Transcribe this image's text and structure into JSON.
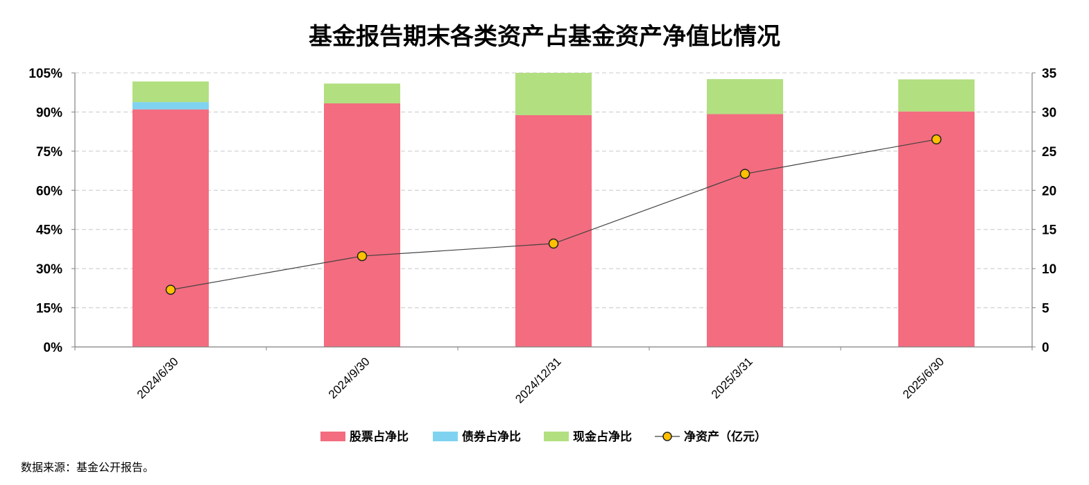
{
  "chart_data": {
    "type": "bar",
    "title": "基金报告期末各类资产占基金资产净值比情况",
    "categories": [
      "2024/6/30",
      "2024/9/30",
      "2024/12/31",
      "2025/3/31",
      "2025/6/30"
    ],
    "series": [
      {
        "name": "股票占净比",
        "type": "bar",
        "stack": "assets",
        "axis": "left",
        "color": "#F36C7F",
        "values": [
          91.0,
          93.3,
          88.8,
          89.2,
          90.2
        ]
      },
      {
        "name": "债券占净比",
        "type": "bar",
        "stack": "assets",
        "axis": "left",
        "color": "#7FD3F1",
        "values": [
          2.8,
          0.0,
          0.0,
          0.0,
          0.0
        ]
      },
      {
        "name": "现金占净比",
        "type": "bar",
        "stack": "assets",
        "axis": "left",
        "color": "#B2DF80",
        "values": [
          7.9,
          7.6,
          16.5,
          13.4,
          12.3
        ]
      },
      {
        "name": "净资产（亿元）",
        "type": "line",
        "axis": "right",
        "color": "#FFC000",
        "values": [
          7.3,
          11.6,
          13.2,
          22.1,
          26.5
        ]
      }
    ],
    "y_left": {
      "min": 0,
      "max": 105,
      "ticks": [
        0,
        15,
        30,
        45,
        60,
        75,
        90,
        105
      ],
      "format": "percent"
    },
    "y_right": {
      "min": 0,
      "max": 35,
      "ticks": [
        0,
        5,
        10,
        15,
        20,
        25,
        30,
        35
      ]
    },
    "grid": true,
    "legend_position": "bottom"
  },
  "footer": {
    "source": "数据来源：基金公开报告。"
  }
}
